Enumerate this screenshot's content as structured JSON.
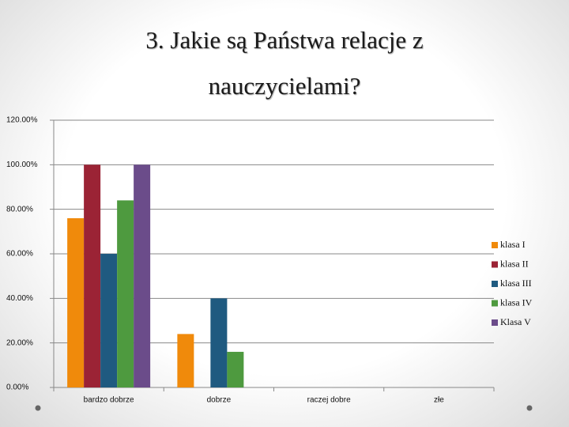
{
  "chart_data": {
    "type": "bar",
    "title": "3. Jakie są Państwa relacje z nauczycielami?",
    "categories": [
      "bardzo dobrze",
      "dobrze",
      "raczej dobre",
      "złe"
    ],
    "series": [
      {
        "name": "klasa I",
        "color": "#f08a0b",
        "values": [
          76,
          24,
          0,
          0
        ]
      },
      {
        "name": "klasa II",
        "color": "#9b2335",
        "values": [
          100,
          0,
          0,
          0
        ]
      },
      {
        "name": "klasa III",
        "color": "#1f5a80",
        "values": [
          60,
          40,
          0,
          0
        ]
      },
      {
        "name": "klasa IV",
        "color": "#4e9a3f",
        "values": [
          84,
          16,
          0,
          0
        ]
      },
      {
        "name": "Klasa V",
        "color": "#6b4c8a",
        "values": [
          100,
          0,
          0,
          0
        ]
      }
    ],
    "ylim": [
      0,
      120
    ],
    "yticks": [
      {
        "value": 0,
        "label": "0.00%"
      },
      {
        "value": 20,
        "label": "20.00%"
      },
      {
        "value": 40,
        "label": "40.00%"
      },
      {
        "value": 60,
        "label": "60.00%"
      },
      {
        "value": 80,
        "label": "80.00%"
      },
      {
        "value": 100,
        "label": "100.00%"
      },
      {
        "value": 120,
        "label": "120.00%"
      }
    ],
    "grid": true,
    "legend": "right"
  }
}
